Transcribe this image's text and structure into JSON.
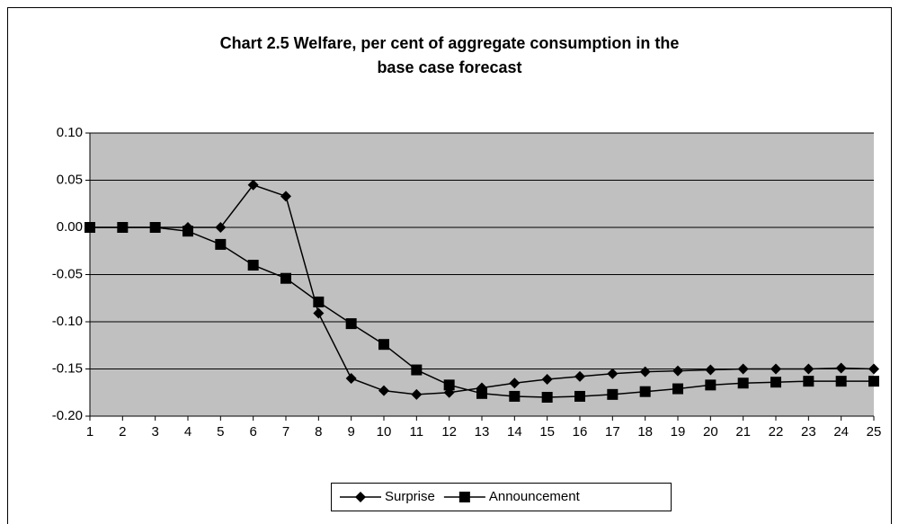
{
  "chart_data": {
    "type": "line",
    "title": [
      "Chart 2.5 Welfare, per cent of aggregate consumption in the",
      "base case forecast"
    ],
    "categories": [
      "1",
      "2",
      "3",
      "4",
      "5",
      "6",
      "7",
      "8",
      "9",
      "10",
      "11",
      "12",
      "13",
      "14",
      "15",
      "16",
      "17",
      "18",
      "19",
      "20",
      "21",
      "22",
      "23",
      "24",
      "25"
    ],
    "series": [
      {
        "name": "Surprise",
        "color": "#000000",
        "marker": "diamond",
        "values": [
          0,
          0,
          0,
          0,
          0,
          0.045,
          0.033,
          -0.091,
          -0.16,
          -0.173,
          -0.177,
          -0.175,
          -0.17,
          -0.165,
          -0.161,
          -0.158,
          -0.155,
          -0.153,
          -0.152,
          -0.151,
          -0.15,
          -0.15,
          -0.15,
          -0.149,
          -0.15
        ]
      },
      {
        "name": "Announcement",
        "color": "#000000",
        "marker": "square",
        "values": [
          0,
          0,
          0,
          -0.004,
          -0.018,
          -0.04,
          -0.054,
          -0.079,
          -0.102,
          -0.124,
          -0.151,
          -0.167,
          -0.176,
          -0.179,
          -0.18,
          -0.179,
          -0.177,
          -0.174,
          -0.171,
          -0.167,
          -0.165,
          -0.164,
          -0.163,
          -0.163,
          -0.163
        ]
      }
    ],
    "ylim": [
      -0.2,
      0.1
    ],
    "yticks": [
      {
        "value": 0.1,
        "label": "0.10"
      },
      0.05,
      {
        "value": 0,
        "label": "0.00"
      },
      -0.05,
      {
        "value": -0.1,
        "label": "-0.10"
      },
      -0.15,
      {
        "value": -0.2,
        "label": "-0.20"
      }
    ],
    "grid": true,
    "legend": "bottom"
  }
}
